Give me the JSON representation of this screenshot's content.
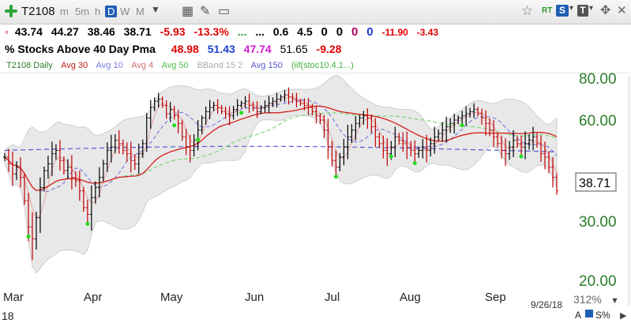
{
  "toolbar": {
    "symbol": "T2108",
    "timeframes": [
      "m",
      "5m",
      "h",
      "D",
      "W",
      "M"
    ],
    "active_timeframe": "D",
    "rt": "RT",
    "s_label": "S",
    "t_label": "T"
  },
  "quote": {
    "last": "43.74",
    "high": "44.27",
    "low": "38.46",
    "close": "38.71",
    "change": "-5.93",
    "change_pct": "-13.3%",
    "dots1": "...",
    "dots2": "...",
    "v1": "0.6",
    "v2": "4.5",
    "z1": "0",
    "z2": "0",
    "z3": "0",
    "z4": "0",
    "neg1": "-11.90",
    "neg2": "-3.43"
  },
  "indicator_row": {
    "name": "% Stocks Above 40 Day Pma",
    "v1": "48.98",
    "v2": "51.43",
    "v3": "47.74",
    "v4": "51.65",
    "v5": "-9.28"
  },
  "legend": {
    "items": [
      "T2108 Daily",
      "Avg 30",
      "Avg 10",
      "Avg 4",
      "Avg 50",
      "BBand 15 2",
      "Avg 150",
      "(iif(stoc10.4.1...)"
    ]
  },
  "axes": {
    "y_ticks": [
      "80.00",
      "60.00",
      "30.00",
      "20.00"
    ],
    "x_ticks": [
      "Mar",
      "Apr",
      "May",
      "Jun",
      "Jul",
      "Aug",
      "Sep"
    ],
    "year_label": "18",
    "last_value": "38.71",
    "date": "9/26/18",
    "zoom": "312%",
    "a_label": "A",
    "s_pct": "S%"
  },
  "colors": {
    "up": "#000000",
    "down": "#c00000",
    "avg30": "#d81b1b",
    "avg10": "#7878e0",
    "avg4": "#e8a0a0",
    "avg50": "#78d878",
    "avg150": "#5a5ad0",
    "band": "#d9d9d9",
    "signal": "#22dd22"
  },
  "chart_data": {
    "type": "ohlc",
    "y_axis_ticks": [
      20,
      30,
      60,
      80
    ],
    "x_axis_months": [
      "Mar",
      "Apr",
      "May",
      "Jun",
      "Jul",
      "Aug",
      "Sep"
    ],
    "close_series": [
      49,
      47,
      44,
      46,
      43,
      36,
      29,
      27,
      31,
      40,
      45,
      47,
      50,
      51,
      48,
      45,
      46,
      43,
      42,
      39,
      34,
      32,
      37,
      40,
      43,
      47,
      51,
      52,
      54,
      53,
      51,
      50,
      48,
      47,
      50,
      53,
      61,
      66,
      69,
      70,
      67,
      63,
      65,
      62,
      59,
      55,
      52,
      51,
      54,
      57,
      61,
      64,
      66,
      67,
      66,
      64,
      63,
      62,
      65,
      67,
      68,
      69,
      67,
      66,
      64,
      66,
      67,
      68,
      69,
      70,
      71,
      72,
      71,
      70,
      69,
      68,
      67,
      66,
      64,
      62,
      60,
      57,
      52,
      48,
      46,
      49,
      52,
      55,
      57,
      59,
      61,
      62,
      61,
      58,
      55,
      53,
      51,
      50,
      52,
      55,
      54,
      53,
      52,
      51,
      50,
      51,
      52,
      51,
      53,
      55,
      56,
      57,
      58,
      59,
      60,
      61,
      62,
      63,
      64,
      65,
      63,
      61,
      59,
      57,
      55,
      53,
      51,
      50,
      52,
      54,
      53,
      52,
      53,
      54,
      55,
      53,
      50,
      49,
      46,
      43,
      39
    ]
  }
}
